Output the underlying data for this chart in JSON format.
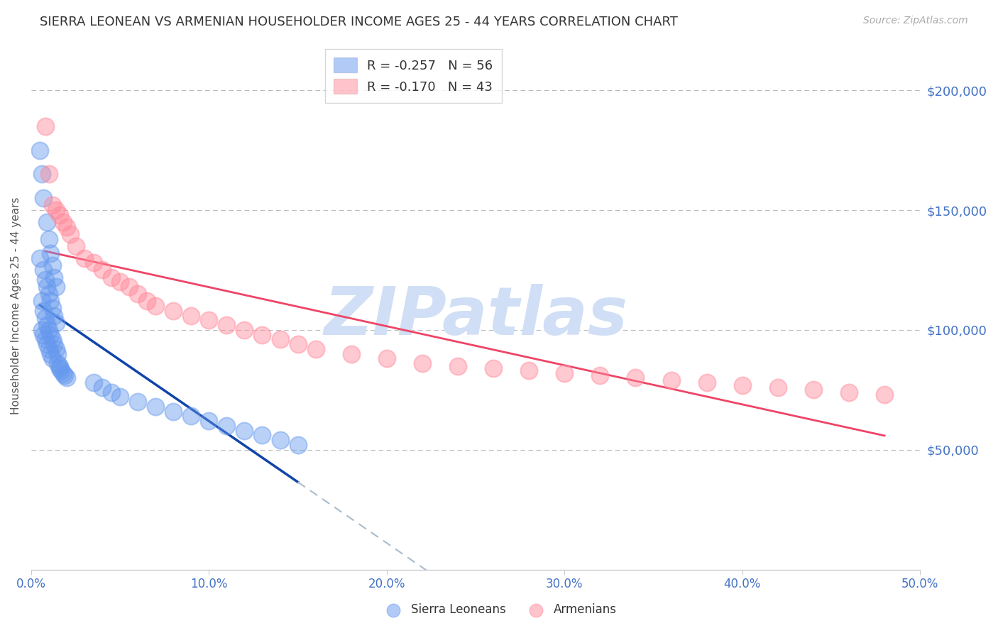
{
  "title": "SIERRA LEONEAN VS ARMENIAN HOUSEHOLDER INCOME AGES 25 - 44 YEARS CORRELATION CHART",
  "source": "Source: ZipAtlas.com",
  "ylabel": "Householder Income Ages 25 - 44 years",
  "xlim": [
    0.0,
    0.5
  ],
  "ylim": [
    0,
    220000
  ],
  "yticks": [
    0,
    50000,
    100000,
    150000,
    200000
  ],
  "ytick_labels": [
    "",
    "$50,000",
    "$100,000",
    "$150,000",
    "$200,000"
  ],
  "xticks": [
    0.0,
    0.1,
    0.2,
    0.3,
    0.4,
    0.5
  ],
  "xtick_labels": [
    "0.0%",
    "10.0%",
    "20.0%",
    "30.0%",
    "40.0%",
    "50.0%"
  ],
  "title_color": "#333333",
  "source_color": "#aaaaaa",
  "axis_label_color": "#555555",
  "tick_label_color": "#4472c4",
  "grid_color": "#bbbbbb",
  "watermark_text": "ZIPatlas",
  "watermark_color": "#d0dff5",
  "sierra_color": "#6699ee",
  "armenian_color": "#ff8899",
  "legend_label_sierra": "R = -0.257   N = 56",
  "legend_label_armenian": "R = -0.170   N = 43",
  "sierra_line_color": "#1144aa",
  "sierra_dash_color": "#aabbcc",
  "armenian_line_color": "#ee4466",
  "sierra_x": [
    0.005,
    0.006,
    0.007,
    0.009,
    0.01,
    0.011,
    0.012,
    0.013,
    0.014,
    0.005,
    0.007,
    0.008,
    0.009,
    0.01,
    0.011,
    0.012,
    0.013,
    0.014,
    0.006,
    0.007,
    0.008,
    0.009,
    0.01,
    0.011,
    0.012,
    0.013,
    0.014,
    0.015,
    0.006,
    0.007,
    0.008,
    0.009,
    0.01,
    0.011,
    0.012,
    0.015,
    0.016,
    0.016,
    0.017,
    0.018,
    0.019,
    0.02,
    0.035,
    0.04,
    0.045,
    0.05,
    0.06,
    0.07,
    0.08,
    0.09,
    0.1,
    0.11,
    0.12,
    0.13,
    0.14,
    0.15
  ],
  "sierra_y": [
    175000,
    165000,
    155000,
    145000,
    138000,
    132000,
    127000,
    122000,
    118000,
    130000,
    125000,
    121000,
    118000,
    115000,
    112000,
    109000,
    106000,
    103000,
    112000,
    108000,
    105000,
    102000,
    100000,
    98000,
    96000,
    94000,
    92000,
    90000,
    100000,
    98000,
    96000,
    94000,
    92000,
    90000,
    88000,
    86000,
    85000,
    84000,
    83000,
    82000,
    81000,
    80000,
    78000,
    76000,
    74000,
    72000,
    70000,
    68000,
    66000,
    64000,
    62000,
    60000,
    58000,
    56000,
    54000,
    52000
  ],
  "armenian_x": [
    0.008,
    0.01,
    0.012,
    0.014,
    0.016,
    0.018,
    0.02,
    0.022,
    0.025,
    0.03,
    0.035,
    0.04,
    0.045,
    0.05,
    0.055,
    0.06,
    0.065,
    0.07,
    0.08,
    0.09,
    0.1,
    0.11,
    0.12,
    0.13,
    0.14,
    0.15,
    0.16,
    0.18,
    0.2,
    0.22,
    0.24,
    0.26,
    0.28,
    0.3,
    0.32,
    0.34,
    0.36,
    0.38,
    0.4,
    0.42,
    0.44,
    0.46,
    0.48
  ],
  "armenian_y": [
    185000,
    165000,
    152000,
    150000,
    148000,
    145000,
    143000,
    140000,
    135000,
    130000,
    128000,
    125000,
    122000,
    120000,
    118000,
    115000,
    112000,
    110000,
    108000,
    106000,
    104000,
    102000,
    100000,
    98000,
    96000,
    94000,
    92000,
    90000,
    88000,
    86000,
    85000,
    84000,
    83000,
    82000,
    81000,
    80000,
    79000,
    78000,
    77000,
    76000,
    75000,
    74000,
    73000
  ]
}
